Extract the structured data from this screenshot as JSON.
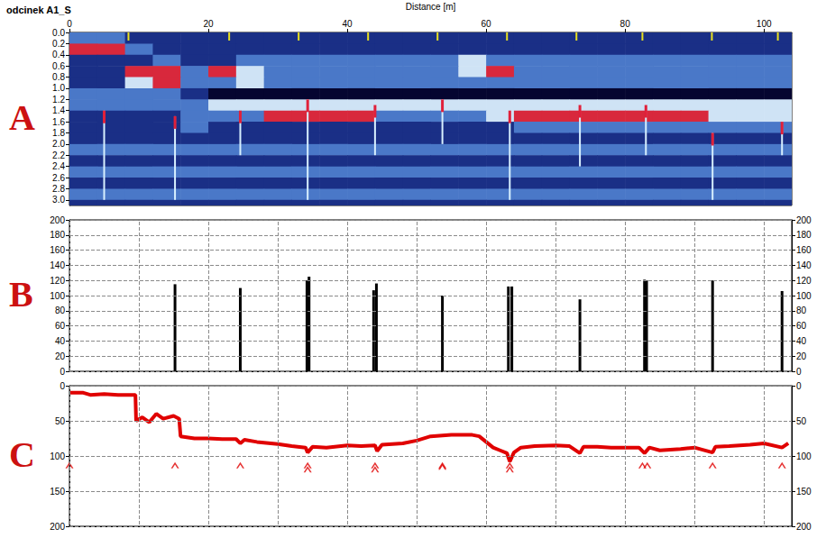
{
  "chart_data": [
    {
      "type": "heatmap",
      "panel_label": "A",
      "title": "odcinek A1_S",
      "x_label": "Distance [m]",
      "xlim": [
        0,
        104
      ],
      "xticks": [
        0,
        20,
        40,
        60,
        80,
        100
      ],
      "ylim": [
        3.1,
        0
      ],
      "yticks": [
        {
          "value": 0,
          "label": "0.0"
        },
        0.2,
        0.4,
        0.6,
        0.8,
        {
          "value": 1,
          "label": "1.0"
        },
        1.2,
        1.4,
        1.6,
        1.8,
        {
          "value": 2,
          "label": "2.0"
        },
        2.2,
        2.4,
        2.6,
        2.8,
        {
          "value": 3,
          "label": "3.0"
        }
      ],
      "grid": false,
      "cells": {
        "x": [
          2,
          6,
          10,
          14,
          18,
          22,
          26,
          30,
          34,
          38,
          42,
          46,
          50,
          54,
          58,
          62,
          66,
          70,
          74,
          78,
          82,
          86,
          90,
          94,
          98,
          102
        ],
        "depth": [
          0.1,
          0.3,
          0.5,
          0.7,
          0.9,
          1.1,
          1.3,
          1.5,
          1.7,
          1.9,
          2.1,
          2.3,
          2.5,
          2.7,
          2.9,
          3.1
        ],
        "levels": [
          0,
          1,
          2,
          3,
          4
        ],
        "colors": [
          "#050530",
          "#1a2f86",
          "#4a78c8",
          "#cfe3f5",
          "#d8283c"
        ],
        "values": [
          [
            2,
            2,
            1,
            1,
            1,
            1,
            1,
            1,
            1,
            1,
            1,
            1,
            1,
            1,
            1,
            1,
            1,
            1,
            1,
            1,
            1,
            1,
            1,
            1,
            1,
            1
          ],
          [
            4,
            4,
            2,
            1,
            1,
            1,
            1,
            1,
            1,
            1,
            1,
            1,
            1,
            1,
            1,
            1,
            1,
            1,
            1,
            1,
            1,
            1,
            1,
            1,
            1,
            1
          ],
          [
            1,
            1,
            1,
            2,
            1,
            1,
            2,
            2,
            2,
            2,
            2,
            2,
            2,
            2,
            3,
            2,
            2,
            2,
            2,
            2,
            2,
            2,
            2,
            2,
            2,
            2
          ],
          [
            1,
            1,
            4,
            4,
            2,
            4,
            3,
            2,
            2,
            2,
            2,
            2,
            2,
            2,
            3,
            4,
            2,
            2,
            2,
            2,
            2,
            2,
            2,
            2,
            2,
            2
          ],
          [
            1,
            1,
            3,
            4,
            2,
            2,
            3,
            2,
            2,
            2,
            2,
            2,
            2,
            2,
            2,
            2,
            2,
            2,
            2,
            2,
            2,
            2,
            2,
            2,
            2,
            2
          ],
          [
            2,
            2,
            2,
            2,
            1,
            0,
            0,
            0,
            0,
            0,
            0,
            0,
            0,
            0,
            0,
            0,
            0,
            0,
            0,
            0,
            0,
            0,
            0,
            0,
            0,
            0
          ],
          [
            2,
            2,
            2,
            2,
            2,
            3,
            3,
            3,
            3,
            3,
            3,
            3,
            3,
            3,
            3,
            3,
            3,
            3,
            3,
            3,
            3,
            3,
            3,
            3,
            3,
            3
          ],
          [
            1,
            1,
            1,
            1,
            2,
            2,
            2,
            4,
            4,
            4,
            4,
            2,
            2,
            2,
            2,
            3,
            4,
            4,
            4,
            4,
            4,
            4,
            4,
            3,
            3,
            3
          ],
          [
            1,
            1,
            1,
            1,
            2,
            1,
            1,
            1,
            1,
            1,
            1,
            1,
            1,
            1,
            1,
            1,
            2,
            2,
            2,
            2,
            2,
            2,
            2,
            2,
            2,
            2
          ],
          [
            1,
            1,
            1,
            1,
            1,
            1,
            1,
            1,
            1,
            1,
            1,
            1,
            1,
            1,
            1,
            1,
            1,
            1,
            1,
            1,
            1,
            1,
            1,
            1,
            1,
            1
          ],
          [
            2,
            2,
            2,
            2,
            2,
            2,
            2,
            2,
            2,
            2,
            2,
            2,
            2,
            2,
            2,
            2,
            2,
            2,
            2,
            2,
            2,
            2,
            2,
            2,
            2,
            2
          ],
          [
            1,
            1,
            1,
            1,
            1,
            1,
            1,
            1,
            1,
            1,
            1,
            1,
            1,
            1,
            1,
            1,
            1,
            1,
            1,
            1,
            1,
            1,
            1,
            1,
            1,
            1
          ],
          [
            2,
            2,
            2,
            2,
            2,
            2,
            2,
            2,
            2,
            2,
            2,
            2,
            2,
            2,
            2,
            2,
            2,
            2,
            2,
            2,
            2,
            2,
            2,
            2,
            2,
            2
          ],
          [
            1,
            1,
            1,
            1,
            1,
            1,
            1,
            1,
            1,
            1,
            1,
            1,
            1,
            1,
            1,
            1,
            1,
            1,
            1,
            1,
            1,
            1,
            1,
            1,
            1,
            1
          ],
          [
            2,
            2,
            2,
            2,
            2,
            2,
            2,
            2,
            2,
            2,
            2,
            2,
            2,
            2,
            2,
            2,
            2,
            2,
            2,
            2,
            2,
            2,
            2,
            2,
            2,
            2
          ],
          [
            1,
            1,
            1,
            1,
            1,
            1,
            1,
            1,
            1,
            1,
            1,
            1,
            1,
            1,
            1,
            1,
            1,
            1,
            1,
            1,
            1,
            1,
            1,
            1,
            1,
            1
          ]
        ]
      },
      "streaks": {
        "x": [
          5,
          15.2,
          24.6,
          34.3,
          44,
          53.7,
          63.4,
          73.5,
          83,
          92.6,
          102.6
        ],
        "top": [
          1.4,
          1.5,
          1.4,
          1.2,
          1.3,
          1.2,
          1.4,
          1.3,
          1.3,
          1.8,
          1.6
        ],
        "bottom": [
          3,
          3,
          2.2,
          3,
          2.2,
          2,
          3,
          2.4,
          2.2,
          3,
          2.2
        ]
      },
      "markers": {
        "x": [
          8.5,
          23,
          33,
          43,
          53,
          63,
          73,
          82.5,
          92.5,
          102
        ],
        "color": "#e8e020"
      }
    },
    {
      "type": "bar",
      "panel_label": "B",
      "x": [
        15.2,
        24.6,
        34.2,
        34.5,
        43.8,
        44.2,
        53.7,
        63.2,
        63.7,
        73.5,
        82.8,
        83.1,
        92.6,
        102.6
      ],
      "values": [
        115,
        110,
        120,
        125,
        107,
        116,
        100,
        112,
        112,
        95,
        121,
        120,
        120,
        106
      ],
      "color": "#000000",
      "xlim": [
        0,
        104
      ],
      "xticks": [
        0,
        10,
        20,
        30,
        40,
        50,
        60,
        70,
        80,
        90,
        100
      ],
      "ylim": [
        0,
        200
      ],
      "yticks": [
        0,
        20,
        40,
        60,
        80,
        100,
        120,
        140,
        160,
        180,
        200
      ],
      "grid": true,
      "tick_labels": "y"
    },
    {
      "type": "line",
      "panel_label": "C",
      "xlim": [
        0,
        104
      ],
      "xticks": [
        0,
        10,
        20,
        30,
        40,
        50,
        60,
        70,
        80,
        90,
        100
      ],
      "ylim": [
        200,
        0
      ],
      "yticks": [
        0,
        50,
        100,
        150,
        200
      ],
      "grid": true,
      "tick_labels": "y",
      "series": [
        {
          "type": "line",
          "color": "#e00000",
          "x": [
            0,
            2,
            3,
            5,
            7,
            9,
            9.5,
            9.6,
            10.5,
            11.5,
            12.5,
            13.5,
            15,
            15.8,
            16,
            18,
            20,
            22,
            24,
            24.6,
            25.2,
            27,
            30,
            32,
            34,
            34.3,
            35,
            37,
            40,
            42,
            44,
            44.3,
            45,
            48,
            50,
            52,
            55,
            58,
            59,
            60,
            61,
            62,
            63,
            63.4,
            64,
            65,
            67,
            70,
            72,
            73.5,
            74,
            76,
            78,
            80,
            82,
            82.8,
            83.5,
            85,
            88,
            90,
            92.6,
            93,
            95,
            98,
            100,
            102.6,
            103.5
          ],
          "values": [
            10,
            10,
            13,
            12,
            13,
            13,
            13,
            50,
            45,
            52,
            40,
            47,
            43,
            47,
            72,
            75,
            75,
            76,
            76,
            82,
            77,
            80,
            83,
            86,
            88,
            95,
            87,
            88,
            85,
            86,
            85,
            93,
            84,
            82,
            78,
            72,
            70,
            70,
            72,
            80,
            88,
            92,
            96,
            108,
            95,
            88,
            86,
            85,
            86,
            96,
            87,
            87,
            88,
            88,
            88,
            96,
            88,
            92,
            90,
            88,
            95,
            87,
            86,
            84,
            82,
            88,
            82
          ]
        },
        {
          "type": "scatter",
          "marker": "caret",
          "color": "#e00000",
          "x": [
            0,
            15.2,
            24.6,
            34.3,
            34.3,
            44,
            44,
            53.7,
            53.7,
            63.4,
            63.4,
            82.5,
            83.2,
            92.6,
            102.6
          ],
          "values": [
            113,
            113,
            113,
            113,
            119,
            113,
            119,
            113,
            115,
            113,
            119,
            113,
            113,
            113,
            113
          ]
        }
      ]
    }
  ]
}
